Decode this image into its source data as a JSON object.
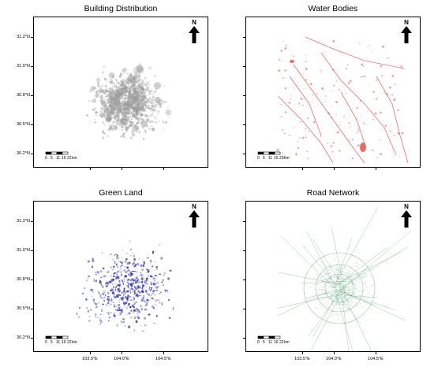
{
  "panels": [
    {
      "id": "buildings",
      "title": "Building Distribution",
      "color": "#9a9a9a",
      "theme": "buildings"
    },
    {
      "id": "water",
      "title": "Water Bodies",
      "color": "#e8413c",
      "theme": "water"
    },
    {
      "id": "green",
      "title": "Green Land",
      "color": "#2b2fb0",
      "theme": "green"
    },
    {
      "id": "roads",
      "title": "Road Network",
      "color": "#4f9c6a",
      "theme": "roads"
    }
  ],
  "lat_labels": [
    "31.2°N",
    "31.0°N",
    "30.8°N",
    "30.5°N",
    "30.2°N"
  ],
  "lon_labels": [
    "103.5°E",
    "104.0°E",
    "104.5°E"
  ],
  "north_label": "N",
  "scale": {
    "ticks": [
      "0",
      "5",
      "11",
      "16",
      "22"
    ],
    "unit": "km"
  }
}
